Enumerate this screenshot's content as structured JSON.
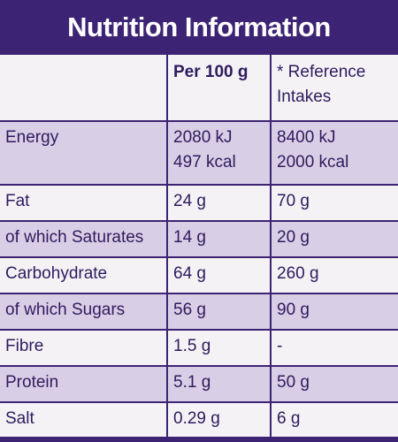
{
  "header": {
    "title": "Nutrition Information"
  },
  "table": {
    "columns": {
      "per_100g": "Per 100 g",
      "reference": "* Reference Intakes"
    },
    "rows": [
      [
        "Energy",
        [
          "2080 kJ",
          "497 kcal"
        ],
        [
          "8400 kJ",
          "2000 kcal"
        ]
      ],
      [
        "Fat",
        "24 g",
        "70 g"
      ],
      [
        "of which Saturates",
        "14 g",
        "20 g"
      ],
      [
        "Carbohydrate",
        "64 g",
        "260 g"
      ],
      [
        "of which Sugars",
        "56 g",
        "90 g"
      ],
      [
        "Fibre",
        "1.5 g",
        "-"
      ],
      [
        "Protein",
        "5.1 g",
        "50 g"
      ],
      [
        "Salt",
        "0.29 g",
        "6 g"
      ]
    ]
  }
}
